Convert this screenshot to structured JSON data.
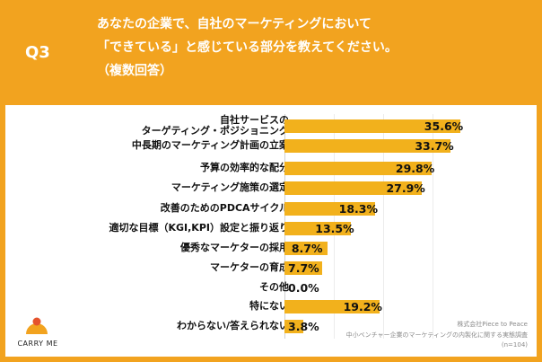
{
  "header": {
    "question_no": "Q3",
    "title_lines": [
      "あなたの企業で、自社のマーケティングにおいて",
      "「できている」と感じている部分を教えてください。",
      "（複数回答）"
    ]
  },
  "chart_data": {
    "type": "bar",
    "orientation": "horizontal",
    "categories": [
      "自社サービスの\nターゲティング・ポジショニング",
      "中長期のマーケティング計画の立案",
      "予算の効率的な配分",
      "マーケティング施策の選定",
      "改善のためのPDCAサイクル",
      "適切な目標（KGI,KPI）設定と振り返り",
      "優秀なマーケターの採用",
      "マーケターの育成",
      "その他",
      "特にない",
      "わからない/答えられない"
    ],
    "values": [
      35.6,
      33.7,
      29.8,
      27.9,
      18.3,
      13.5,
      8.7,
      7.7,
      0.0,
      19.2,
      3.8
    ],
    "value_labels": [
      "35.6%",
      "33.7%",
      "29.8%",
      "27.9%",
      "18.3%",
      "13.5%",
      "8.7%",
      "7.7%",
      "0.0%",
      "19.2%",
      "3.8%"
    ],
    "xlim": [
      0,
      40
    ],
    "bar_color": "#f2b11c"
  },
  "source_note": {
    "lines": [
      "株式会社Piece to Peace",
      "中小ベンチャー企業のマーケティングの内製化に関する実態調査",
      "(n=104)"
    ]
  },
  "brand": {
    "name": "CARRY ME",
    "accent": "#f2a31f",
    "logo_dot_color": "#e5532d"
  }
}
